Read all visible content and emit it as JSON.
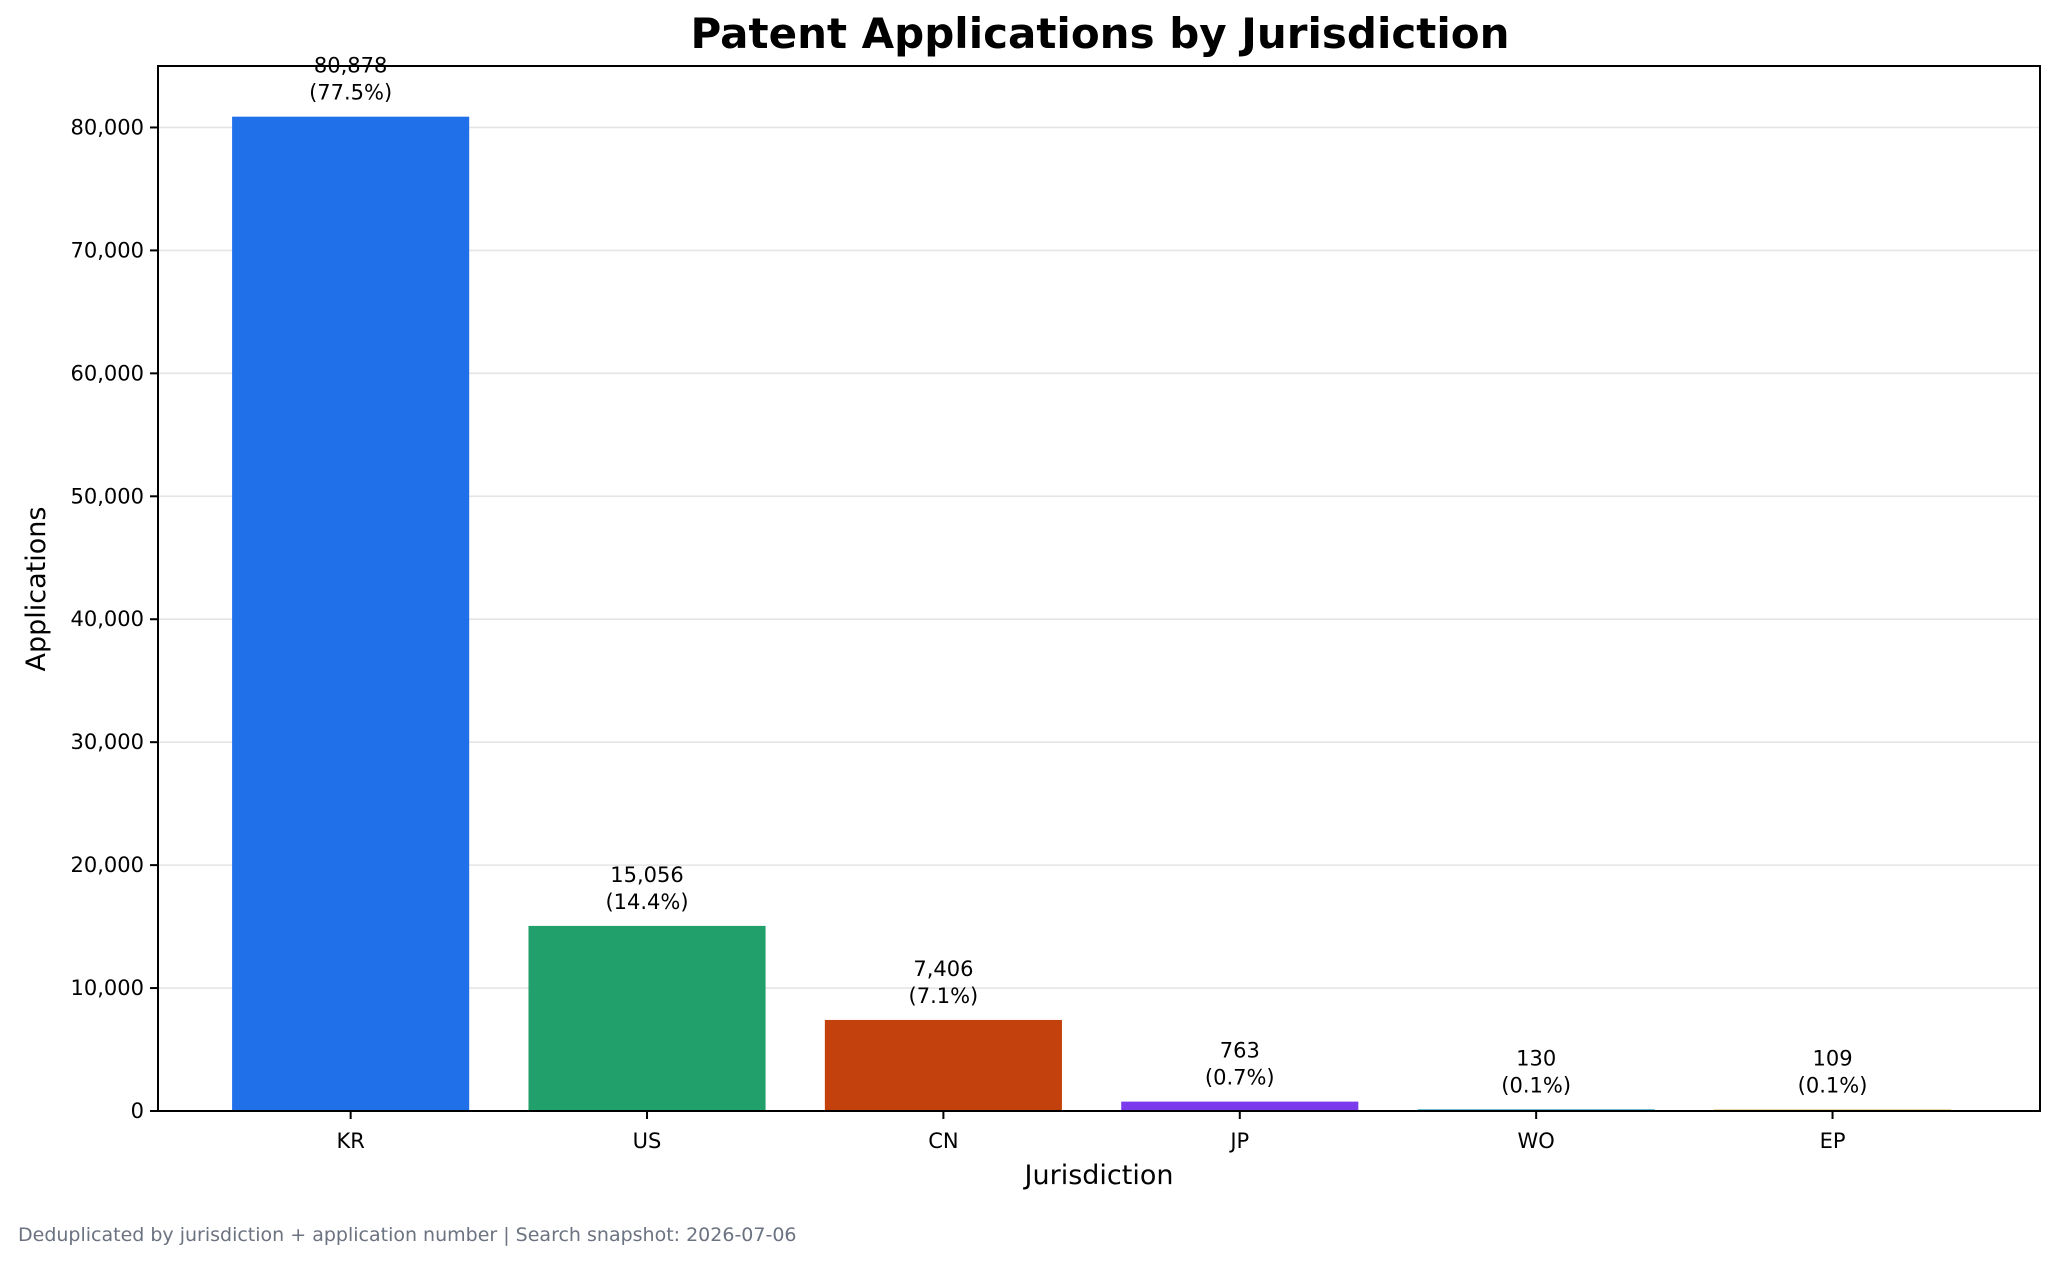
{
  "chart_data": {
    "type": "bar",
    "title": "Patent Applications by Jurisdiction",
    "xlabel": "Jurisdiction",
    "ylabel": "Applications",
    "categories": [
      "KR",
      "US",
      "CN",
      "JP",
      "WO",
      "EP"
    ],
    "values": [
      80878,
      15056,
      7406,
      763,
      130,
      109
    ],
    "value_labels": [
      "80,878",
      "15,056",
      "7,406",
      "763",
      "130",
      "109"
    ],
    "percent_labels": [
      "(77.5%)",
      "(14.4%)",
      "(7.1%)",
      "(0.7%)",
      "(0.1%)",
      "(0.1%)"
    ],
    "colors": [
      "#2071e9",
      "#22a06b",
      "#c2410c",
      "#7c3aed",
      "#0891b2",
      "#ca8a04"
    ],
    "ylim": [
      0,
      85000
    ],
    "yticks": [
      0,
      10000,
      20000,
      30000,
      40000,
      50000,
      60000,
      70000,
      80000
    ],
    "ytick_labels": [
      "0",
      "10,000",
      "20,000",
      "30,000",
      "40,000",
      "50,000",
      "60,000",
      "70,000",
      "80,000"
    ],
    "grid": "y-axis",
    "legend": "none"
  },
  "footnote": "Deduplicated by jurisdiction + application number | Search snapshot: 2026-07-06"
}
